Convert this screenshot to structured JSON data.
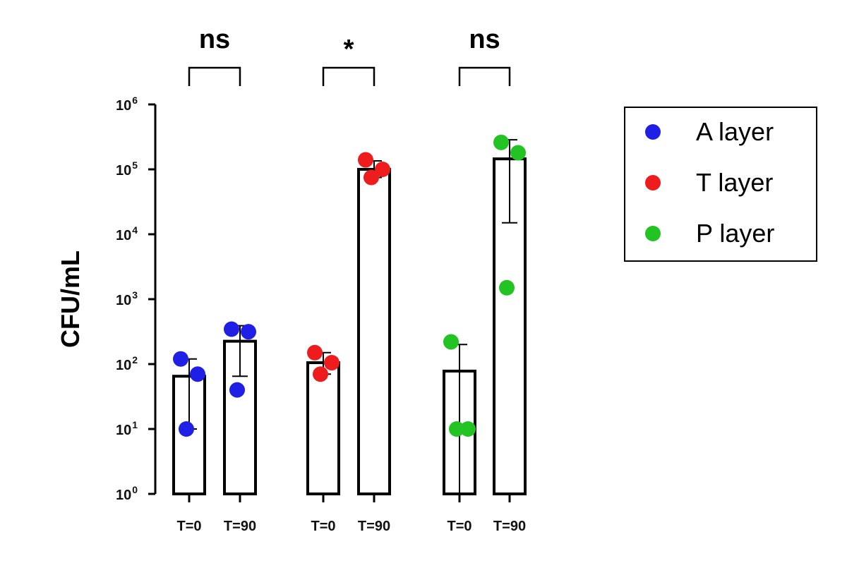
{
  "chart_data": {
    "type": "bar",
    "yscale": "log",
    "ylabel": "CFU/mL",
    "ylim": [
      1,
      1000000
    ],
    "yticks": [
      {
        "base": "10",
        "exp": "0"
      },
      {
        "base": "10",
        "exp": "1"
      },
      {
        "base": "10",
        "exp": "2"
      },
      {
        "base": "10",
        "exp": "3"
      },
      {
        "base": "10",
        "exp": "4"
      },
      {
        "base": "10",
        "exp": "5"
      },
      {
        "base": "10",
        "exp": "6"
      }
    ],
    "groups": [
      {
        "name": "A layer",
        "color": "#1f1fe6",
        "significance": "ns",
        "bars": [
          {
            "label": "T=0",
            "mean": 65,
            "err_low": 10,
            "err_high": 120,
            "points": [
              120,
              70,
              10
            ]
          },
          {
            "label": "T=90",
            "mean": 225,
            "err_low": 65,
            "err_high": 390,
            "points": [
              345,
              315,
              40
            ]
          }
        ]
      },
      {
        "name": "T layer",
        "color": "#ee1c1c",
        "significance": "*",
        "bars": [
          {
            "label": "T=0",
            "mean": 105,
            "err_low": 70,
            "err_high": 150,
            "points": [
              150,
              105,
              70
            ]
          },
          {
            "label": "T=90",
            "mean": 100000,
            "err_low": 75000,
            "err_high": 135000,
            "points": [
              140000,
              100000,
              75000
            ]
          }
        ]
      },
      {
        "name": "P layer",
        "color": "#22c322",
        "significance": "ns",
        "bars": [
          {
            "label": "T=0",
            "mean": 78,
            "err_low": 1,
            "err_high": 200,
            "points": [
              220,
              10,
              10
            ]
          },
          {
            "label": "T=90",
            "mean": 145000,
            "err_low": 15000,
            "err_high": 285000,
            "points": [
              260000,
              180000,
              1500
            ]
          }
        ]
      }
    ],
    "legend": {
      "position": "right",
      "entries": [
        {
          "label": "A layer",
          "color": "#1f1fe6"
        },
        {
          "label": "T layer",
          "color": "#ee1c1c"
        },
        {
          "label": "P layer",
          "color": "#22c322"
        }
      ]
    }
  }
}
